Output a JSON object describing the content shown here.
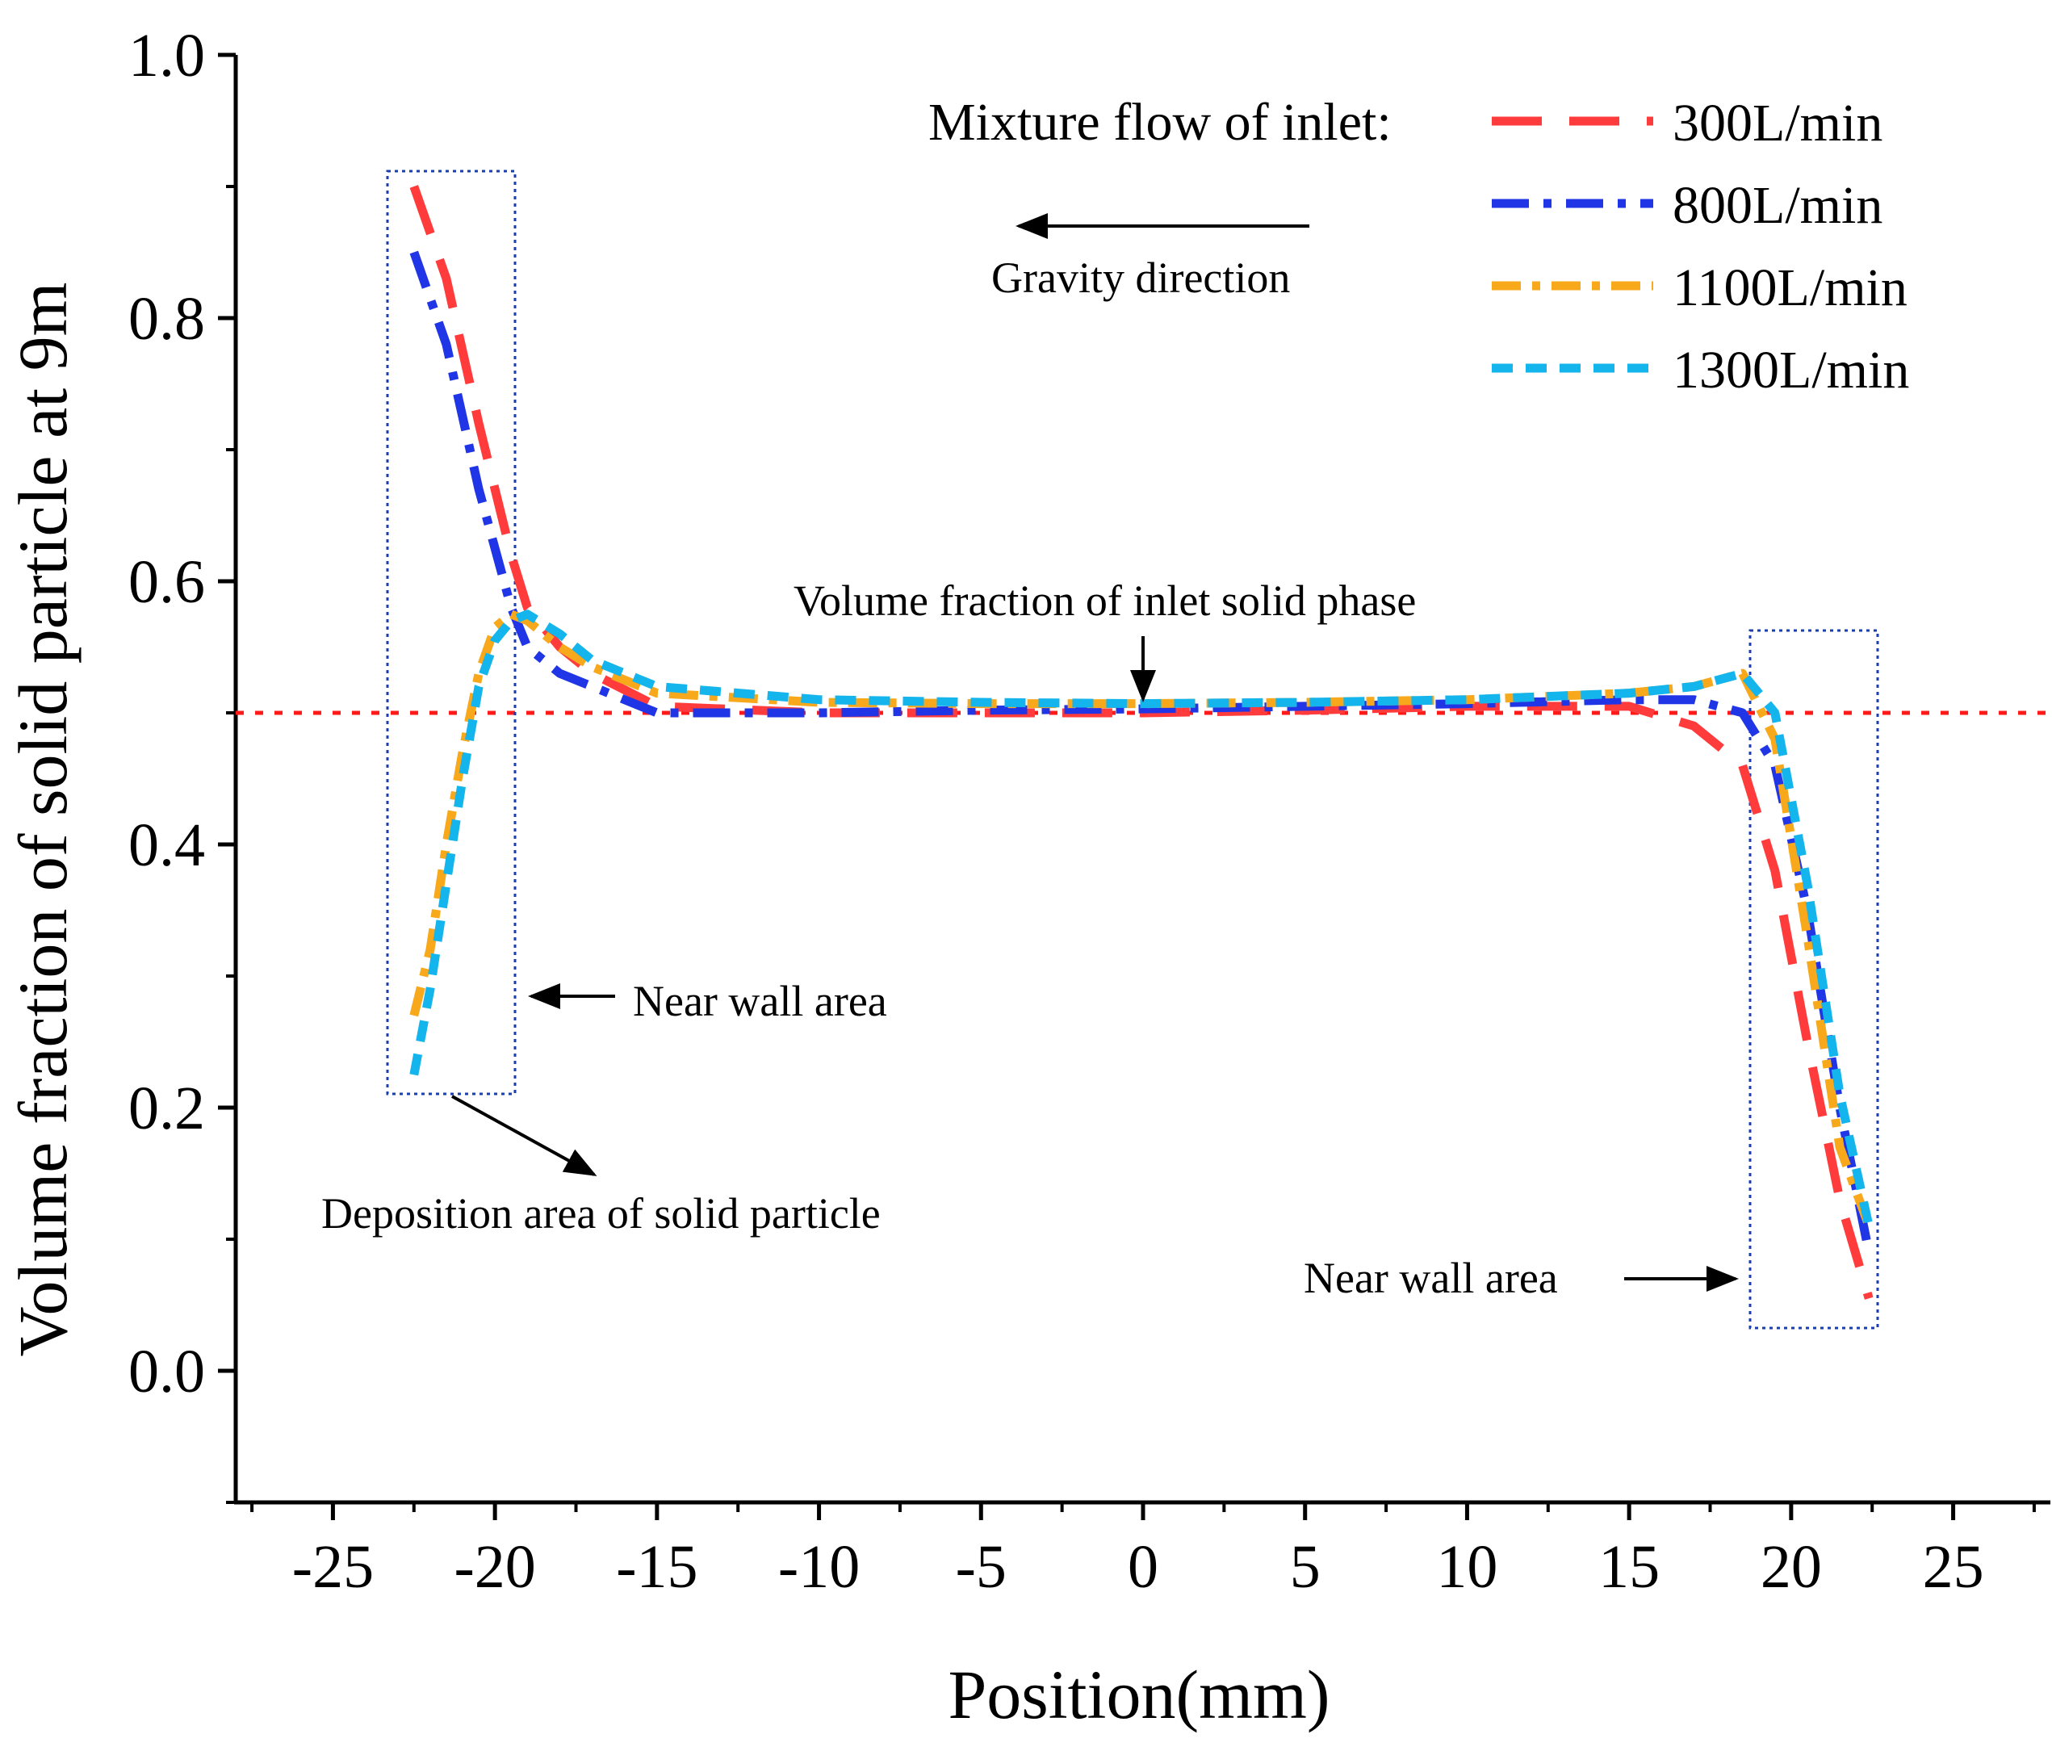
{
  "chart_data": {
    "type": "line",
    "title": "",
    "xlabel": "Position(mm)",
    "ylabel": "Volume fraction of solid particle at 9m",
    "xlim": [
      -28,
      28
    ],
    "ylim": [
      -0.1,
      1.0
    ],
    "xticks": [
      -25,
      -20,
      -15,
      -10,
      -5,
      0,
      5,
      10,
      15,
      20,
      25
    ],
    "xtick_labels": [
      "-25",
      "-20",
      "-15",
      "-10",
      "-5",
      "0",
      "5",
      "10",
      "15",
      "20",
      "25"
    ],
    "yticks": [
      0.0,
      0.2,
      0.4,
      0.6,
      0.8,
      1.0
    ],
    "ytick_labels": [
      "0.0",
      "0.2",
      "0.4",
      "0.6",
      "0.8",
      "1.0"
    ],
    "grid": false,
    "legend_title": "Mixture flow of inlet:",
    "legend_position": "top-right",
    "series": [
      {
        "name": "300L/min",
        "color": "#ff3b3b",
        "style": "dash",
        "x": [
          -22.5,
          -21.5,
          -20.5,
          -19.5,
          -19.0,
          -18.0,
          -17.0,
          -15.0,
          -10.0,
          -5.0,
          0.0,
          5.0,
          10.0,
          15.0,
          17.0,
          18.5,
          19.5,
          20.5,
          21.5,
          22.4
        ],
        "y": [
          0.9,
          0.83,
          0.72,
          0.62,
          0.58,
          0.55,
          0.53,
          0.505,
          0.5,
          0.5,
          0.5,
          0.502,
          0.505,
          0.505,
          0.49,
          0.46,
          0.38,
          0.25,
          0.13,
          0.055
        ]
      },
      {
        "name": "800L/min",
        "color": "#1f35e6",
        "style": "dashdot",
        "x": [
          -22.5,
          -21.5,
          -20.5,
          -19.5,
          -19.0,
          -18.0,
          -17.0,
          -15.0,
          -10.0,
          -5.0,
          0.0,
          5.0,
          10.0,
          15.0,
          17.0,
          18.5,
          19.5,
          20.5,
          21.5,
          22.4
        ],
        "y": [
          0.85,
          0.78,
          0.67,
          0.58,
          0.55,
          0.53,
          0.52,
          0.5,
          0.5,
          0.502,
          0.503,
          0.505,
          0.507,
          0.51,
          0.51,
          0.5,
          0.46,
          0.35,
          0.2,
          0.09
        ]
      },
      {
        "name": "1100L/min",
        "color": "#f7a81b",
        "style": "dot",
        "x": [
          -22.5,
          -22.0,
          -21.5,
          -21.0,
          -20.5,
          -20.0,
          -19.5,
          -19.0,
          -18.0,
          -17.0,
          -15.0,
          -10.0,
          -5.0,
          0.0,
          5.0,
          10.0,
          15.0,
          17.0,
          18.5,
          19.5,
          20.5,
          21.5,
          22.4
        ],
        "y": [
          0.27,
          0.32,
          0.4,
          0.47,
          0.53,
          0.565,
          0.575,
          0.57,
          0.55,
          0.535,
          0.515,
          0.508,
          0.507,
          0.507,
          0.508,
          0.51,
          0.515,
          0.52,
          0.53,
          0.48,
          0.33,
          0.17,
          0.11
        ]
      },
      {
        "name": "1300L/min",
        "color": "#14b4ec",
        "style": "shortdash",
        "x": [
          -22.5,
          -22.0,
          -21.5,
          -21.0,
          -20.5,
          -20.0,
          -19.5,
          -19.0,
          -18.0,
          -17.0,
          -15.0,
          -10.0,
          -5.0,
          0.0,
          5.0,
          10.0,
          15.0,
          17.0,
          18.5,
          19.5,
          20.5,
          21.5,
          22.4
        ],
        "y": [
          0.225,
          0.29,
          0.37,
          0.45,
          0.52,
          0.555,
          0.57,
          0.575,
          0.56,
          0.54,
          0.52,
          0.51,
          0.508,
          0.507,
          0.508,
          0.51,
          0.515,
          0.52,
          0.53,
          0.5,
          0.37,
          0.21,
          0.11
        ]
      }
    ],
    "reference_line": {
      "y": 0.5,
      "color": "#ff1a1a",
      "label": "Volume fraction of inlet solid phase"
    },
    "annotations": {
      "gravity": "Gravity direction",
      "near_wall_left": "Near wall area",
      "near_wall_right": "Near wall area",
      "deposition": "Deposition area of solid particle",
      "box_color": "#1c3fb0"
    }
  }
}
